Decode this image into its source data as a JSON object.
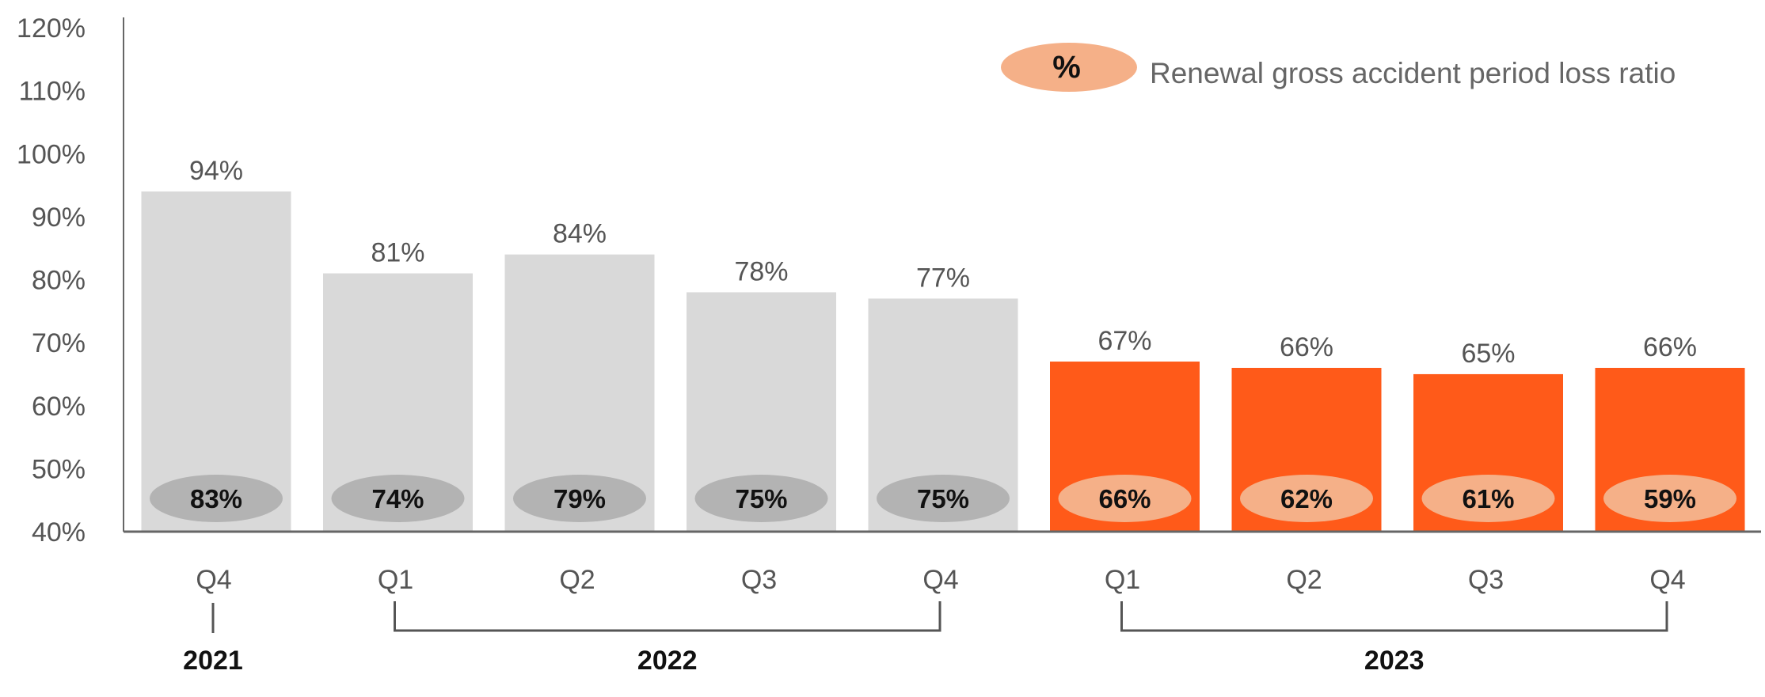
{
  "chart_data": {
    "type": "bar",
    "title": "",
    "xlabel": "",
    "ylabel": "",
    "ylim": [
      40,
      120
    ],
    "y_ticks": [
      40,
      50,
      60,
      70,
      80,
      90,
      100,
      110,
      120
    ],
    "y_tick_format": "%",
    "grid": false,
    "categories": [
      "Q4",
      "Q1",
      "Q2",
      "Q3",
      "Q4",
      "Q1",
      "Q2",
      "Q3",
      "Q4"
    ],
    "series": [
      {
        "values": [
          94,
          81,
          84,
          78,
          77,
          67,
          66,
          65,
          66
        ],
        "labels": [
          "94%",
          "81%",
          "84%",
          "78%",
          "77%",
          "67%",
          "66%",
          "65%",
          "66%"
        ]
      },
      {
        "name": "Renewal gross accident period loss ratio",
        "values": [
          83,
          74,
          79,
          75,
          75,
          66,
          62,
          61,
          59
        ],
        "labels": [
          "83%",
          "74%",
          "79%",
          "75%",
          "75%",
          "66%",
          "62%",
          "61%",
          "59%"
        ]
      }
    ],
    "highlight_from_index": 5,
    "year_groups": [
      {
        "label": "2021",
        "start": 0,
        "end": 0
      },
      {
        "label": "2022",
        "start": 1,
        "end": 4
      },
      {
        "label": "2023",
        "start": 5,
        "end": 8
      }
    ],
    "legend": {
      "symbol": "%",
      "text": "Renewal gross accident period loss ratio",
      "placement": "top-right"
    },
    "colors": {
      "bar_grey": "#d9d9d9",
      "bar_orange": "#ff5a19",
      "ellipse_grey": "#b3b3b3",
      "ellipse_orange": "#f5b088",
      "axis": "#666666",
      "bracket": "#555555"
    }
  }
}
